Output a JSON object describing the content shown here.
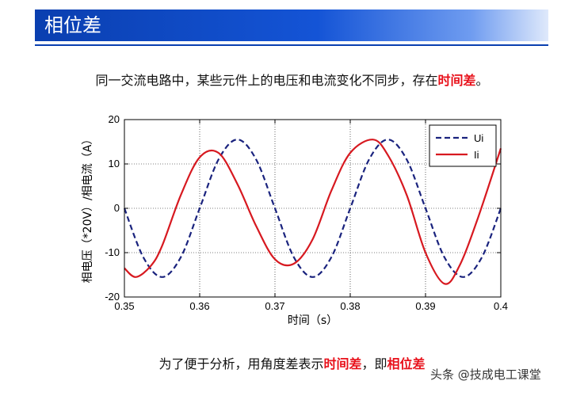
{
  "header": {
    "title": "相位差"
  },
  "intro": {
    "text": "同一交流电路中，某些元件上的电压和电流变化不同步，存在",
    "highlight": "时间差",
    "end": "。"
  },
  "footer": {
    "part1": "为了便于分析，用角度差表示",
    "highlight1": "时间差",
    "part2": "，即",
    "highlight2": "相位差"
  },
  "watermark": "头条 @技成电工课堂",
  "chart_data": {
    "type": "line",
    "xlabel": "时间（s）",
    "ylabel": "相电压（*20V）/相电流（A）",
    "xlim": [
      0.35,
      0.4
    ],
    "ylim": [
      -20,
      20
    ],
    "xticks": [
      "0.35",
      "0.36",
      "0.37",
      "0.38",
      "0.39",
      "0.4"
    ],
    "yticks": [
      "20",
      "10",
      "0",
      "-10",
      "-20"
    ],
    "grid": true,
    "legend_position": "top-right",
    "series": [
      {
        "name": "Ui",
        "color": "#1a237e",
        "style": "dashed",
        "x": [
          0.35,
          0.3525,
          0.355,
          0.3575,
          0.36,
          0.3625,
          0.365,
          0.3675,
          0.37,
          0.3725,
          0.375,
          0.3775,
          0.38,
          0.3825,
          0.385,
          0.3875,
          0.39,
          0.3925,
          0.395,
          0.3975,
          0.4
        ],
        "y": [
          0,
          -11,
          -15.5,
          -11,
          0,
          11,
          15.5,
          11,
          0,
          -11,
          -15.5,
          -11,
          0,
          11,
          15.5,
          11,
          0,
          -11,
          -15.5,
          -11,
          0
        ]
      },
      {
        "name": "Ii",
        "color": "#d71920",
        "style": "solid",
        "x": [
          0.35,
          0.3515,
          0.3535,
          0.355,
          0.3575,
          0.36,
          0.3625,
          0.365,
          0.3675,
          0.37,
          0.3725,
          0.375,
          0.3775,
          0.38,
          0.383,
          0.385,
          0.3875,
          0.39,
          0.3925,
          0.3945,
          0.397,
          0.4
        ],
        "y": [
          -13.5,
          -15.5,
          -13,
          -8.5,
          3,
          11.5,
          12.5,
          5.5,
          -4,
          -11.5,
          -12.5,
          -7,
          4,
          12.5,
          15.5,
          12,
          3,
          -10,
          -17,
          -13,
          -2,
          13.5
        ]
      }
    ]
  }
}
